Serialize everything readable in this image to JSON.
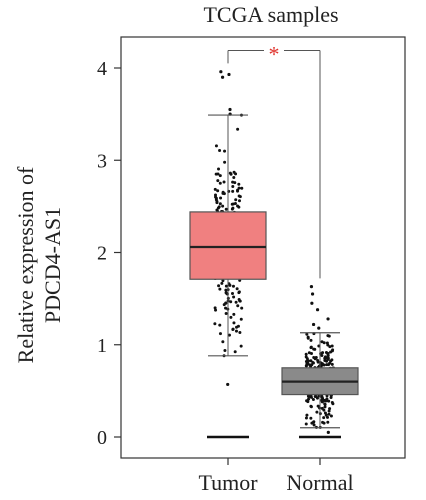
{
  "chart_data": {
    "type": "box",
    "title": "TCGA samples",
    "ylabel_line1": "Relative expression of",
    "ylabel_line2": "PDCD4-AS1",
    "xlabel": "",
    "ylim": [
      0,
      4.4
    ],
    "yticks": [
      0,
      1,
      2,
      3,
      4
    ],
    "ytick_labels": [
      "0",
      "1",
      "2",
      "3",
      "4"
    ],
    "categories": [
      "Tumor",
      "Normal"
    ],
    "significance": {
      "label": "*",
      "bracket_left_y": 4.2,
      "bracket_right_y": 1.72,
      "color": "#e0352f"
    },
    "boxes": [
      {
        "name": "Tumor",
        "fill": "#f08080",
        "min": 0.88,
        "q1": 1.71,
        "median": 2.06,
        "q3": 2.44,
        "max": 3.49,
        "zero_group": true,
        "outliers": [
          3.93,
          3.96,
          3.9,
          3.55,
          3.5,
          0.57
        ]
      },
      {
        "name": "Normal",
        "fill": "#8a8a8a",
        "min": 0.1,
        "q1": 0.46,
        "median": 0.6,
        "q3": 0.75,
        "max": 1.13,
        "zero_group": true,
        "outliers": [
          1.63,
          1.55,
          1.45,
          1.38,
          1.28,
          1.22,
          1.18,
          0.05
        ]
      }
    ]
  }
}
